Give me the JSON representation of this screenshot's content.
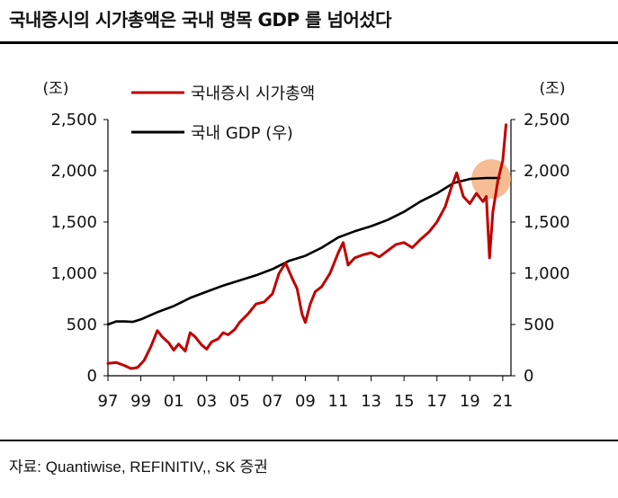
{
  "header": {
    "title": "국내증시의 시가총액은 국내 명목 GDP 를 넘어섰다"
  },
  "footer": {
    "source": "자료: Quantiwise, REFINITIV,, SK 증권"
  },
  "chart_data": {
    "type": "line",
    "title": "국내증시의 시가총액은 국내 명목 GDP 를 넘어섰다",
    "y_unit_left": "(조)",
    "y_unit_right": "(조)",
    "ylim": [
      0,
      2500
    ],
    "xlim": [
      1997,
      2021.5
    ],
    "yticks": [
      0,
      500,
      1000,
      1500,
      2000,
      2500
    ],
    "ytick_labels": [
      "0",
      "500",
      "1,000",
      "1,500",
      "2,000",
      "2,500"
    ],
    "xticks": [
      1997,
      1999,
      2001,
      2003,
      2005,
      2007,
      2009,
      2011,
      2013,
      2015,
      2017,
      2019,
      2021
    ],
    "xtick_labels": [
      "97",
      "99",
      "01",
      "03",
      "05",
      "07",
      "09",
      "11",
      "13",
      "15",
      "17",
      "19",
      "21"
    ],
    "legend_position": "top-left",
    "highlight": {
      "x": 2020.3,
      "y": 1920,
      "color": "#f4b183"
    },
    "series": [
      {
        "name": "국내증시 시가총액",
        "color": "#c00000",
        "x": [
          1997.0,
          1997.5,
          1998.0,
          1998.4,
          1998.8,
          1999.2,
          1999.6,
          2000.0,
          2000.3,
          2000.7,
          2001.0,
          2001.3,
          2001.7,
          2002.0,
          2002.3,
          2002.7,
          2003.0,
          2003.3,
          2003.7,
          2004.0,
          2004.3,
          2004.7,
          2005.0,
          2005.5,
          2006.0,
          2006.5,
          2007.0,
          2007.4,
          2007.8,
          2008.2,
          2008.5,
          2008.8,
          2009.0,
          2009.3,
          2009.6,
          2010.0,
          2010.5,
          2011.0,
          2011.3,
          2011.6,
          2012.0,
          2012.5,
          2013.0,
          2013.5,
          2014.0,
          2014.5,
          2015.0,
          2015.5,
          2016.0,
          2016.5,
          2017.0,
          2017.5,
          2017.9,
          2018.2,
          2018.6,
          2019.0,
          2019.4,
          2019.8,
          2020.0,
          2020.2,
          2020.4,
          2020.7,
          2021.0,
          2021.2
        ],
        "y": [
          120,
          130,
          100,
          70,
          80,
          150,
          280,
          440,
          380,
          320,
          250,
          310,
          240,
          420,
          380,
          300,
          260,
          330,
          360,
          420,
          400,
          450,
          520,
          600,
          700,
          720,
          800,
          1000,
          1100,
          950,
          850,
          600,
          520,
          700,
          820,
          870,
          1000,
          1200,
          1300,
          1080,
          1150,
          1180,
          1200,
          1160,
          1220,
          1280,
          1300,
          1250,
          1330,
          1400,
          1500,
          1650,
          1850,
          1980,
          1750,
          1680,
          1780,
          1700,
          1750,
          1150,
          1600,
          1900,
          2100,
          2450
        ]
      },
      {
        "name": "국내 GDP (우)",
        "color": "#000000",
        "x": [
          1997,
          1997.5,
          1998,
          1998.5,
          1999,
          2000,
          2001,
          2002,
          2003,
          2004,
          2005,
          2006,
          2007,
          2008,
          2009,
          2010,
          2011,
          2012,
          2013,
          2014,
          2015,
          2016,
          2017,
          2018,
          2019,
          2020,
          2020.8
        ],
        "y": [
          500,
          530,
          530,
          525,
          550,
          620,
          680,
          760,
          820,
          880,
          930,
          980,
          1040,
          1120,
          1170,
          1250,
          1350,
          1410,
          1460,
          1520,
          1600,
          1700,
          1780,
          1880,
          1920,
          1930,
          1930
        ]
      }
    ]
  }
}
